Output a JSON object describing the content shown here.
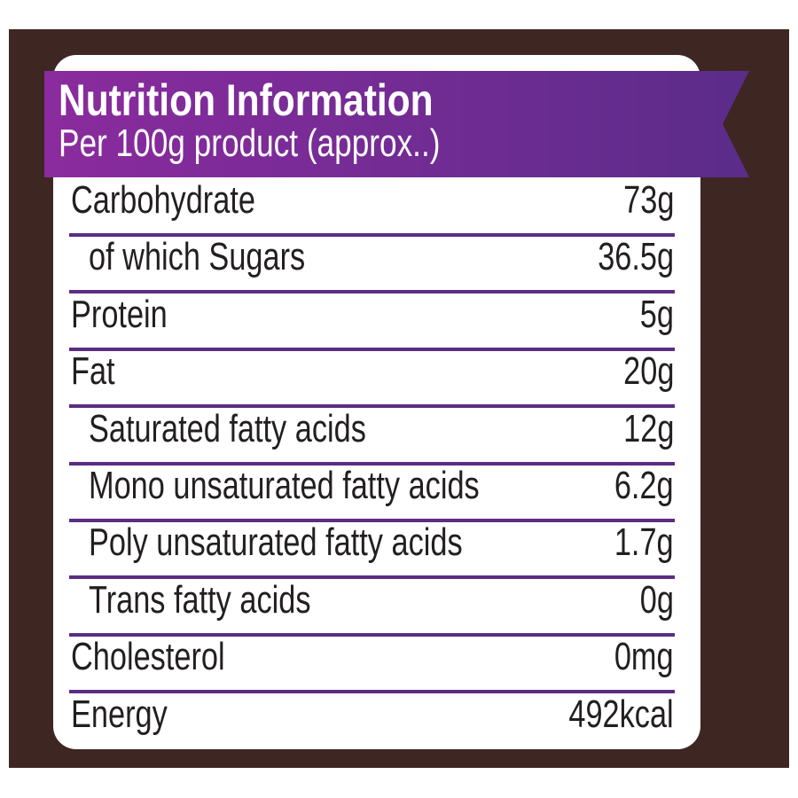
{
  "header": {
    "title": "Nutrition Information",
    "subtitle": "Per 100g product (approx..)"
  },
  "table": {
    "rows": [
      [
        "Carbohydrate",
        "73g"
      ],
      [
        "of which Sugars",
        "36.5g"
      ],
      [
        "Protein",
        "5g"
      ],
      [
        "Fat",
        "20g"
      ],
      [
        "Saturated fatty acids",
        "12g"
      ],
      [
        "Mono unsaturated fatty acids",
        "6.2g"
      ],
      [
        "Poly unsaturated fatty acids",
        "1.7g"
      ],
      [
        "Trans fatty acids",
        "0g"
      ],
      [
        "Cholesterol",
        "0mg"
      ],
      [
        "Energy",
        "492kcal"
      ]
    ]
  }
}
